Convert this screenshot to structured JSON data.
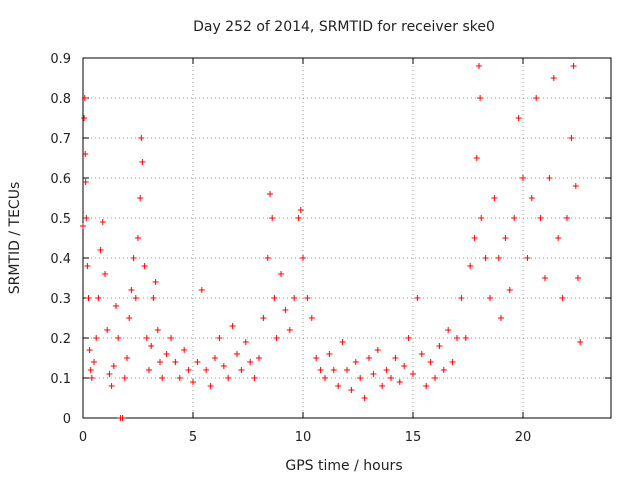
{
  "chart_data": {
    "type": "scatter",
    "title": "Day 252 of 2014, SRMTID for receiver ske0",
    "xlabel": "GPS time / hours",
    "ylabel": "SRMTID / TECUs",
    "xlim": [
      0,
      24
    ],
    "ylim": [
      0,
      0.9
    ],
    "x_ticks": [
      0,
      5,
      10,
      15,
      20
    ],
    "y_ticks": [
      0,
      0.1,
      0.2,
      0.3,
      0.4,
      0.5,
      0.6,
      0.7,
      0.8,
      0.9
    ],
    "x_tick_labels": [
      "0",
      "5",
      "10",
      "15",
      "20"
    ],
    "y_tick_labels": [
      "0",
      "0.1",
      "0.2",
      "0.3",
      "0.4",
      "0.5",
      "0.6",
      "0.7",
      "0.8",
      "0.9"
    ],
    "grid": true,
    "marker": "plus",
    "series": [
      {
        "name": "SRMTID",
        "color": "#ff0000",
        "points": [
          [
            0.0,
            0.48
          ],
          [
            0.05,
            0.75
          ],
          [
            0.08,
            0.8
          ],
          [
            0.1,
            0.66
          ],
          [
            0.12,
            0.59
          ],
          [
            0.15,
            0.5
          ],
          [
            0.2,
            0.38
          ],
          [
            0.25,
            0.3
          ],
          [
            0.3,
            0.17
          ],
          [
            0.35,
            0.12
          ],
          [
            0.4,
            0.1
          ],
          [
            0.5,
            0.14
          ],
          [
            0.6,
            0.2
          ],
          [
            0.7,
            0.3
          ],
          [
            0.8,
            0.42
          ],
          [
            0.9,
            0.49
          ],
          [
            1.0,
            0.36
          ],
          [
            1.1,
            0.22
          ],
          [
            1.2,
            0.11
          ],
          [
            1.3,
            0.08
          ],
          [
            1.4,
            0.13
          ],
          [
            1.5,
            0.28
          ],
          [
            1.6,
            0.2
          ],
          [
            1.7,
            0.0
          ],
          [
            1.8,
            0.0
          ],
          [
            1.9,
            0.1
          ],
          [
            2.0,
            0.15
          ],
          [
            2.1,
            0.25
          ],
          [
            2.2,
            0.32
          ],
          [
            2.3,
            0.4
          ],
          [
            2.4,
            0.3
          ],
          [
            2.5,
            0.45
          ],
          [
            2.6,
            0.55
          ],
          [
            2.65,
            0.7
          ],
          [
            2.7,
            0.64
          ],
          [
            2.8,
            0.38
          ],
          [
            2.9,
            0.2
          ],
          [
            3.0,
            0.12
          ],
          [
            3.1,
            0.18
          ],
          [
            3.2,
            0.3
          ],
          [
            3.3,
            0.34
          ],
          [
            3.4,
            0.22
          ],
          [
            3.5,
            0.14
          ],
          [
            3.6,
            0.1
          ],
          [
            3.8,
            0.16
          ],
          [
            4.0,
            0.2
          ],
          [
            4.2,
            0.14
          ],
          [
            4.4,
            0.1
          ],
          [
            4.6,
            0.17
          ],
          [
            4.8,
            0.12
          ],
          [
            5.0,
            0.09
          ],
          [
            5.2,
            0.14
          ],
          [
            5.4,
            0.32
          ],
          [
            5.6,
            0.12
          ],
          [
            5.8,
            0.08
          ],
          [
            6.0,
            0.15
          ],
          [
            6.2,
            0.2
          ],
          [
            6.4,
            0.13
          ],
          [
            6.6,
            0.1
          ],
          [
            6.8,
            0.23
          ],
          [
            7.0,
            0.16
          ],
          [
            7.2,
            0.12
          ],
          [
            7.4,
            0.19
          ],
          [
            7.6,
            0.14
          ],
          [
            7.8,
            0.1
          ],
          [
            8.0,
            0.15
          ],
          [
            8.2,
            0.25
          ],
          [
            8.4,
            0.4
          ],
          [
            8.5,
            0.56
          ],
          [
            8.6,
            0.5
          ],
          [
            8.7,
            0.3
          ],
          [
            8.8,
            0.2
          ],
          [
            9.0,
            0.36
          ],
          [
            9.2,
            0.27
          ],
          [
            9.4,
            0.22
          ],
          [
            9.6,
            0.3
          ],
          [
            9.8,
            0.5
          ],
          [
            9.9,
            0.52
          ],
          [
            10.0,
            0.4
          ],
          [
            10.2,
            0.3
          ],
          [
            10.4,
            0.25
          ],
          [
            10.6,
            0.15
          ],
          [
            10.8,
            0.12
          ],
          [
            11.0,
            0.1
          ],
          [
            11.2,
            0.16
          ],
          [
            11.4,
            0.12
          ],
          [
            11.6,
            0.08
          ],
          [
            11.8,
            0.19
          ],
          [
            12.0,
            0.12
          ],
          [
            12.2,
            0.07
          ],
          [
            12.4,
            0.14
          ],
          [
            12.6,
            0.1
          ],
          [
            12.8,
            0.05
          ],
          [
            13.0,
            0.15
          ],
          [
            13.2,
            0.11
          ],
          [
            13.4,
            0.17
          ],
          [
            13.6,
            0.08
          ],
          [
            13.8,
            0.12
          ],
          [
            14.0,
            0.1
          ],
          [
            14.2,
            0.15
          ],
          [
            14.4,
            0.09
          ],
          [
            14.6,
            0.13
          ],
          [
            14.8,
            0.2
          ],
          [
            15.0,
            0.11
          ],
          [
            15.2,
            0.3
          ],
          [
            15.4,
            0.16
          ],
          [
            15.6,
            0.08
          ],
          [
            15.8,
            0.14
          ],
          [
            16.0,
            0.1
          ],
          [
            16.2,
            0.18
          ],
          [
            16.4,
            0.12
          ],
          [
            16.6,
            0.22
          ],
          [
            16.8,
            0.14
          ],
          [
            17.0,
            0.2
          ],
          [
            17.2,
            0.3
          ],
          [
            17.4,
            0.2
          ],
          [
            17.6,
            0.38
          ],
          [
            17.8,
            0.45
          ],
          [
            17.9,
            0.65
          ],
          [
            18.0,
            0.88
          ],
          [
            18.05,
            0.8
          ],
          [
            18.1,
            0.5
          ],
          [
            18.3,
            0.4
          ],
          [
            18.5,
            0.3
          ],
          [
            18.7,
            0.55
          ],
          [
            18.9,
            0.4
          ],
          [
            19.0,
            0.25
          ],
          [
            19.2,
            0.45
          ],
          [
            19.4,
            0.32
          ],
          [
            19.6,
            0.5
          ],
          [
            19.8,
            0.75
          ],
          [
            20.0,
            0.6
          ],
          [
            20.2,
            0.4
          ],
          [
            20.4,
            0.55
          ],
          [
            20.6,
            0.8
          ],
          [
            20.8,
            0.5
          ],
          [
            21.0,
            0.35
          ],
          [
            21.2,
            0.6
          ],
          [
            21.4,
            0.85
          ],
          [
            21.6,
            0.45
          ],
          [
            21.8,
            0.3
          ],
          [
            22.0,
            0.5
          ],
          [
            22.2,
            0.7
          ],
          [
            22.3,
            0.88
          ],
          [
            22.4,
            0.58
          ],
          [
            22.5,
            0.35
          ],
          [
            22.6,
            0.19
          ]
        ]
      }
    ]
  }
}
